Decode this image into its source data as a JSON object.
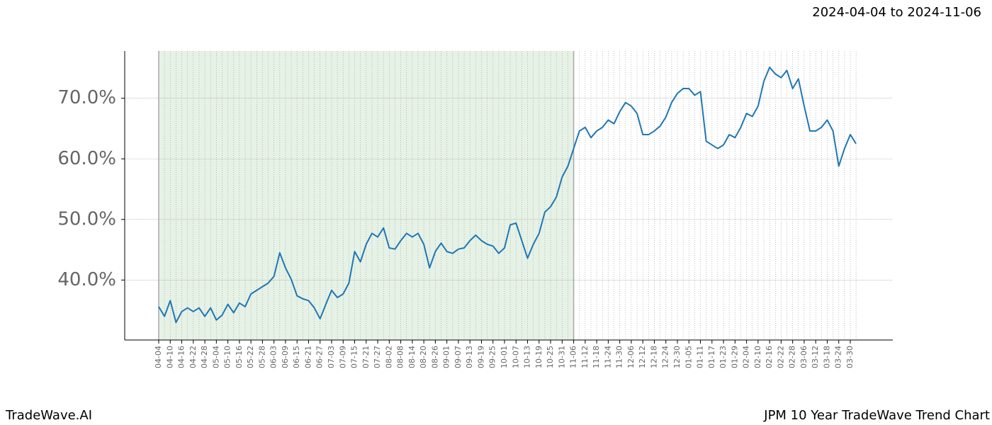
{
  "header": {
    "date_range": "2024-04-04 to 2024-11-06"
  },
  "footer": {
    "brand": "TradeWave.AI",
    "chart_name": "JPM 10 Year TradeWave Trend Chart"
  },
  "chart_data": {
    "type": "line",
    "categories": [
      "04-04",
      null,
      "04-10",
      null,
      "04-16",
      null,
      "04-22",
      null,
      "04-28",
      null,
      "05-04",
      null,
      "05-10",
      null,
      "05-16",
      null,
      "05-22",
      null,
      "05-28",
      null,
      "06-03",
      null,
      "06-09",
      null,
      "06-15",
      null,
      "06-21",
      null,
      "06-27",
      null,
      "07-03",
      null,
      "07-09",
      null,
      "07-15",
      null,
      "07-21",
      null,
      "07-27",
      null,
      "08-02",
      null,
      "08-08",
      null,
      "08-14",
      null,
      "08-20",
      null,
      "08-26",
      null,
      "09-01",
      null,
      "09-07",
      null,
      "09-13",
      null,
      "09-19",
      null,
      "09-25",
      null,
      "10-01",
      null,
      "10-07",
      null,
      "10-13",
      null,
      "10-19",
      null,
      "10-25",
      null,
      "10-31",
      null,
      "11-06",
      null,
      "11-12",
      null,
      "11-18",
      null,
      "11-24",
      null,
      "11-30",
      null,
      "12-06",
      null,
      "12-12",
      null,
      "12-18",
      null,
      "12-24",
      null,
      "12-30",
      null,
      "01-05",
      null,
      "01-11",
      null,
      "01-17",
      null,
      "01-23",
      null,
      "01-29",
      null,
      "02-04",
      null,
      "02-10",
      null,
      "02-16",
      null,
      "02-22",
      null,
      "02-28",
      null,
      "03-06",
      null,
      "03-12",
      null,
      "03-18",
      null,
      "03-24",
      null,
      "03-30",
      null
    ],
    "series": [
      {
        "name": "JPM",
        "color": "#1f77b4",
        "values": [
          35.6,
          34.0,
          36.6,
          33.0,
          34.8,
          35.4,
          34.8,
          35.4,
          34.0,
          35.4,
          33.4,
          34.2,
          36.0,
          34.6,
          36.2,
          35.6,
          37.7,
          38.3,
          38.9,
          39.5,
          40.6,
          44.5,
          42.0,
          40.1,
          37.4,
          36.9,
          36.6,
          35.4,
          33.6,
          36.0,
          38.3,
          37.1,
          37.7,
          39.5,
          44.7,
          43.0,
          45.9,
          47.7,
          47.1,
          48.6,
          45.3,
          45.1,
          46.5,
          47.7,
          47.1,
          47.7,
          45.9,
          42.0,
          44.7,
          46.1,
          44.7,
          44.4,
          45.1,
          45.3,
          46.5,
          47.4,
          46.5,
          45.9,
          45.6,
          44.4,
          45.3,
          49.1,
          49.4,
          46.5,
          43.6,
          45.9,
          47.7,
          51.2,
          52.1,
          53.7,
          57.0,
          58.8,
          61.7,
          64.6,
          65.2,
          63.5,
          64.6,
          65.2,
          66.4,
          65.8,
          67.8,
          69.3,
          68.7,
          67.5,
          64.0,
          64.0,
          64.6,
          65.4,
          66.9,
          69.3,
          70.8,
          71.6,
          71.6,
          70.5,
          71.1,
          62.9,
          62.3,
          61.7,
          62.3,
          64.0,
          63.5,
          65.2,
          67.5,
          67.0,
          68.7,
          72.8,
          75.1,
          74.0,
          73.4,
          74.6,
          71.6,
          73.2,
          68.7,
          64.6,
          64.6,
          65.2,
          66.4,
          64.6,
          58.8,
          61.7,
          64.0,
          62.5
        ]
      }
    ],
    "ylim": [
      30.1,
      77.8
    ],
    "yticks": [
      {
        "value": 40,
        "label": "40.0%"
      },
      {
        "value": 50,
        "label": "50.0%"
      },
      {
        "value": 60,
        "label": "60.0%"
      },
      {
        "value": 70,
        "label": "70.0%"
      }
    ],
    "grid": true,
    "highlight": {
      "from": "04-04",
      "to": "11-06",
      "color": "#e6f2e6"
    }
  }
}
